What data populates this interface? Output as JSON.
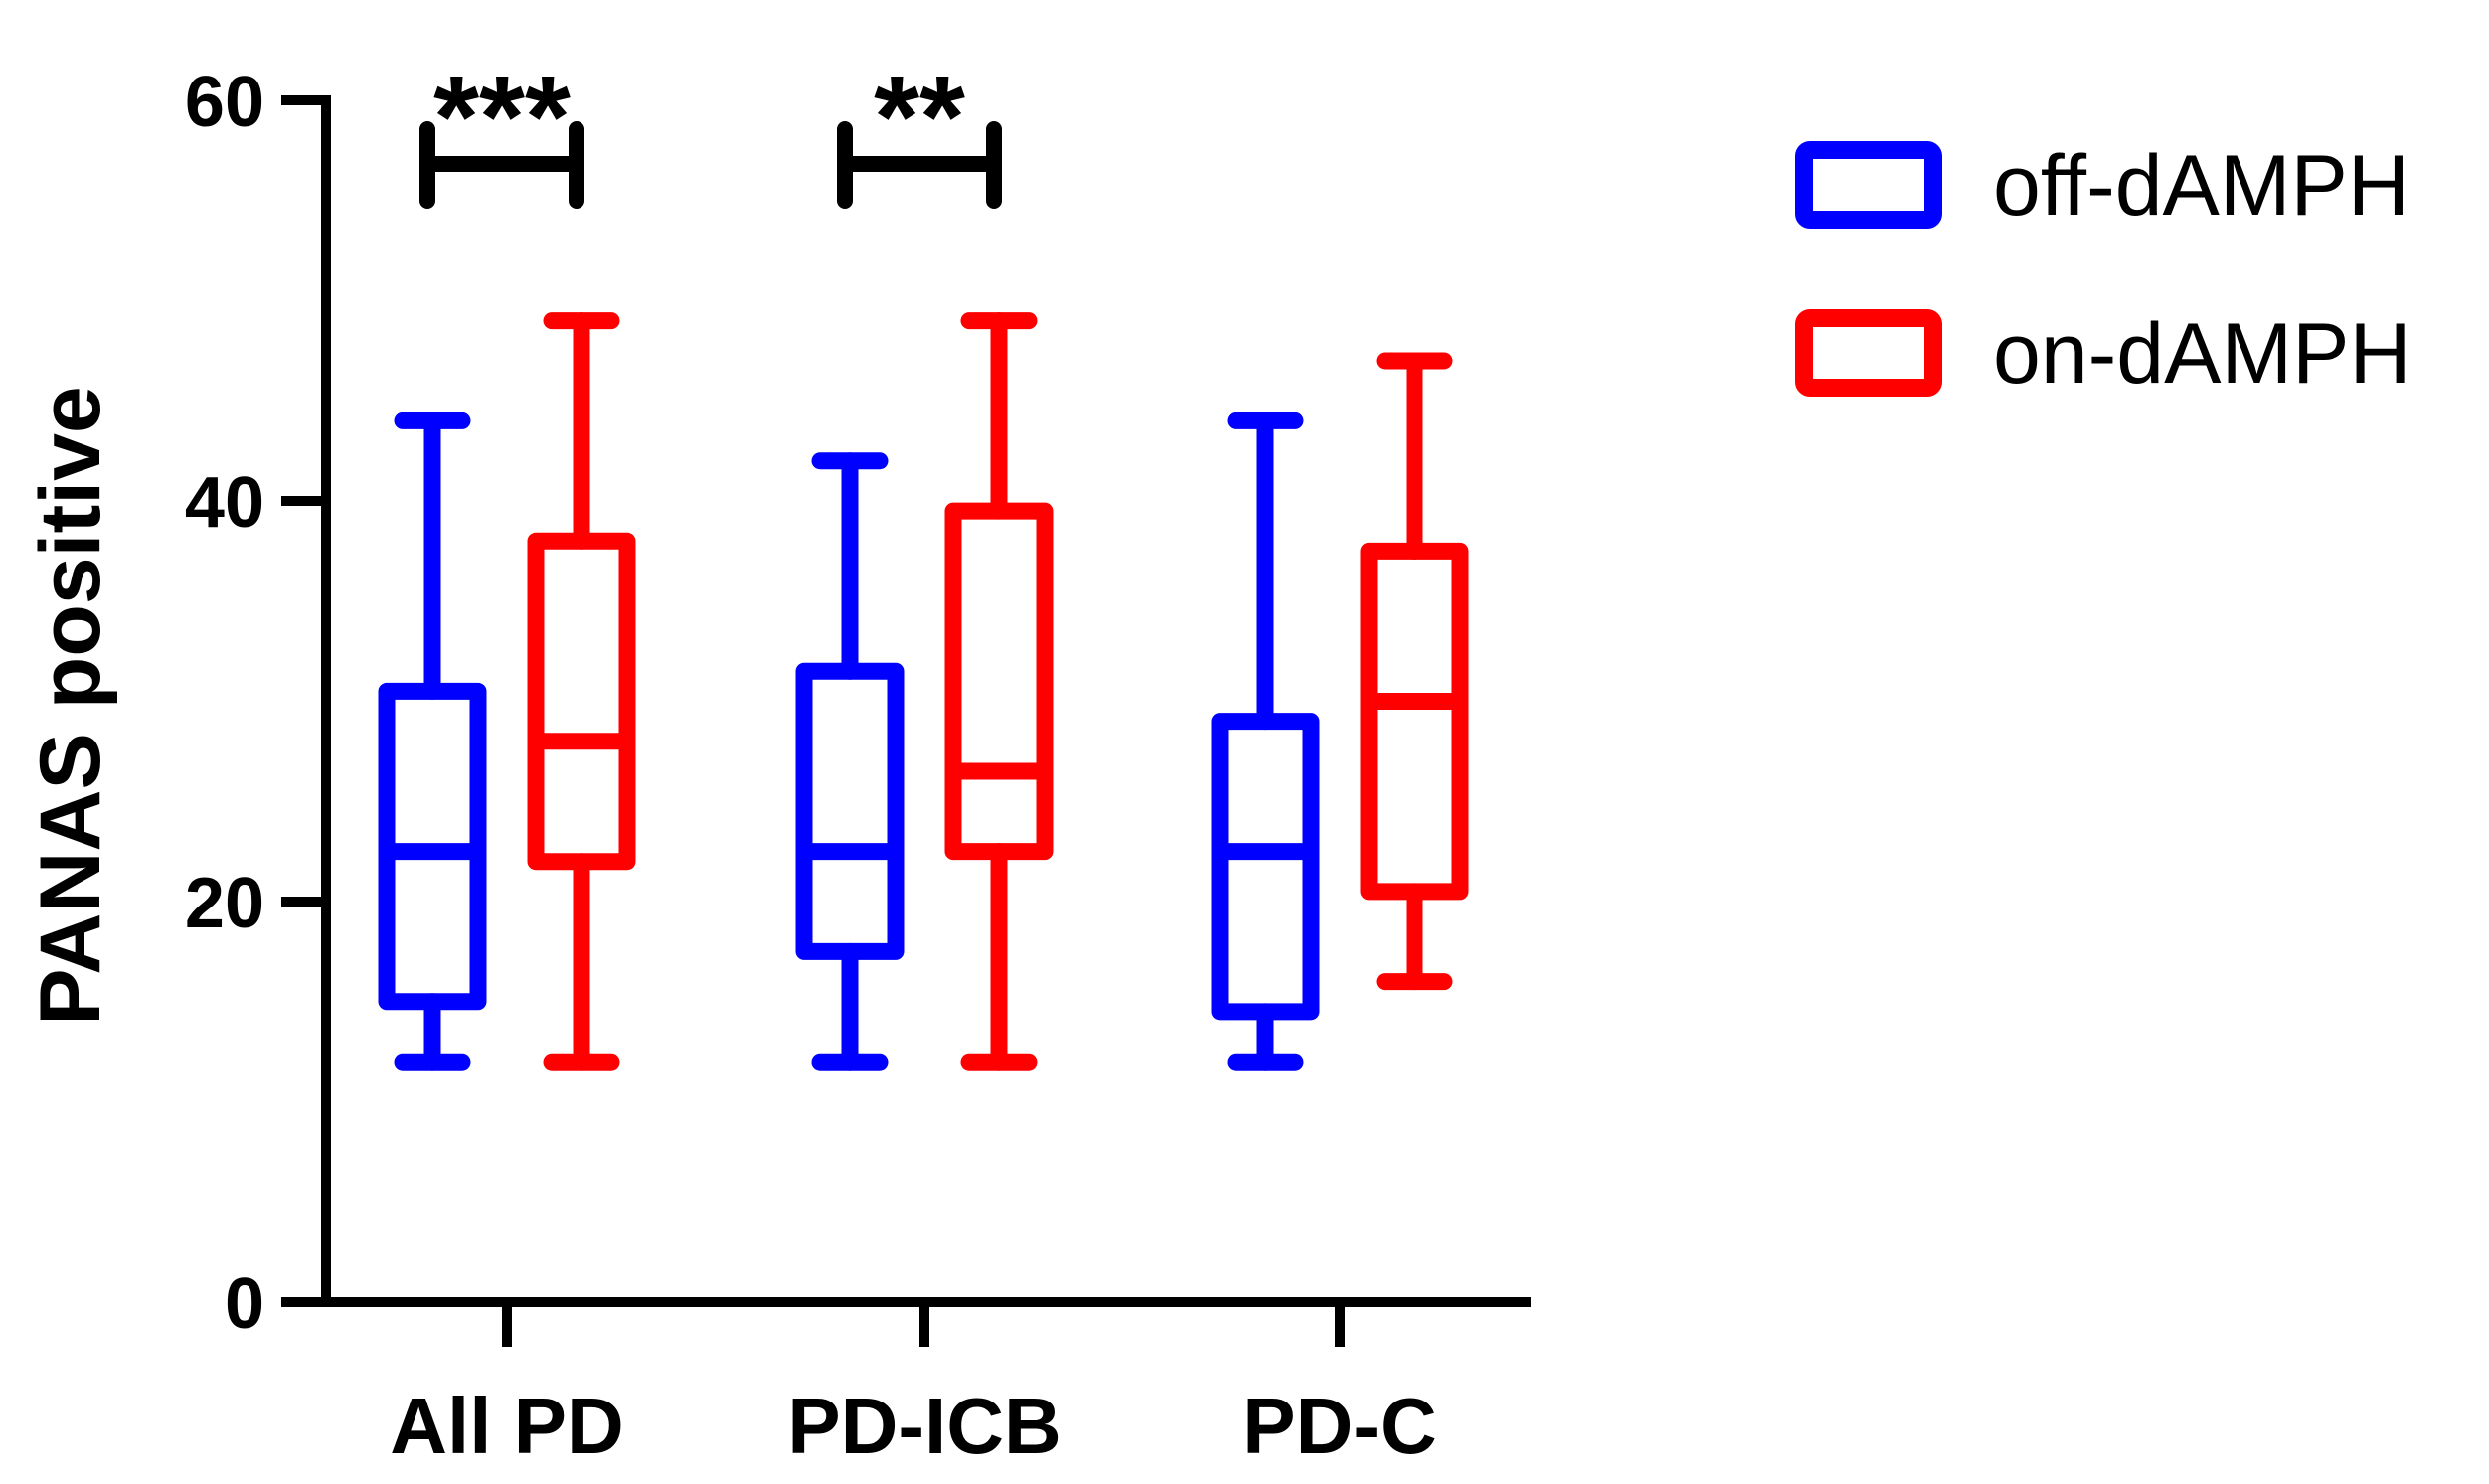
{
  "chart_data": {
    "type": "box",
    "ylabel": "PANAS positive",
    "xlabel": "",
    "ylim": [
      0,
      60
    ],
    "yticks": [
      "0",
      "20",
      "40",
      "60"
    ],
    "categories": [
      "All PD",
      "PD-ICB",
      "PD-C"
    ],
    "grid": false,
    "legend_position": "top-right",
    "series": [
      {
        "name": "off-dAMPH",
        "color": "#0000ff",
        "boxes": [
          {
            "min": 12,
            "q1": 15,
            "median": 22.5,
            "q3": 30.5,
            "max": 44
          },
          {
            "min": 12,
            "q1": 17.5,
            "median": 22.5,
            "q3": 31.5,
            "max": 42
          },
          {
            "min": 12,
            "q1": 14.5,
            "median": 22.5,
            "q3": 29,
            "max": 44
          }
        ]
      },
      {
        "name": "on-dAMPH",
        "color": "#ff0000",
        "boxes": [
          {
            "min": 12,
            "q1": 22,
            "median": 28,
            "q3": 38,
            "max": 49
          },
          {
            "min": 12,
            "q1": 22.5,
            "median": 26.5,
            "q3": 39.5,
            "max": 49
          },
          {
            "min": 16,
            "q1": 20.5,
            "median": 30,
            "q3": 37.5,
            "max": 47
          }
        ]
      }
    ],
    "annotations": [
      {
        "category": "All PD",
        "text": "***"
      },
      {
        "category": "PD-ICB",
        "text": "**"
      }
    ]
  }
}
